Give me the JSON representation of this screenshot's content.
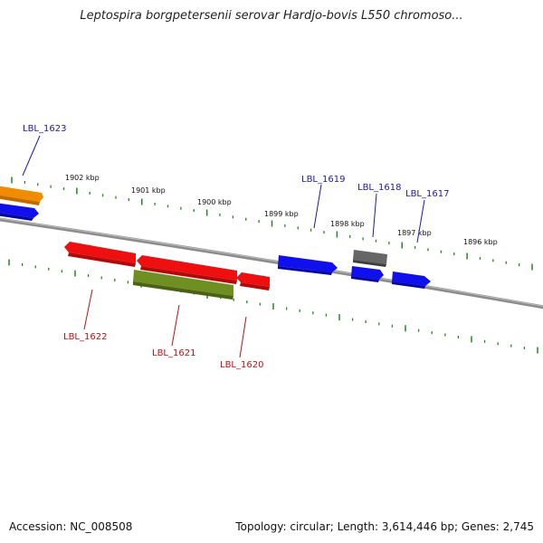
{
  "title": "Leptospira borgpetersenii serovar Hardjo-bovis L550 chromoso...",
  "footer": {
    "accession": "Accession: NC_008508",
    "summary": "Topology: circular; Length: 3,614,446 bp; Genes: 2,745"
  },
  "colors": {
    "forward_gene": "#1010ee",
    "reverse_gene": "#ee1010",
    "green_gene": "#6f8f23",
    "orange_gene": "#f08c00",
    "gray_gene": "#666666",
    "backbone": "#8c8c8c",
    "ticks": "#1e8a1e",
    "forward_label": "#1a1aa8",
    "reverse_label": "#c01010"
  },
  "kbp_labels": [
    "1902 kbp",
    "1901 kbp",
    "1900 kbp",
    "1899 kbp",
    "1898 kbp",
    "1897 kbp",
    "1896 kbp"
  ],
  "genes": [
    {
      "label": "LBL_1623",
      "strand": "forward",
      "color": "orange"
    },
    {
      "label": "LBL_1619",
      "strand": "forward",
      "color": "blue"
    },
    {
      "label": "LBL_1618",
      "strand": "forward",
      "color": "gray"
    },
    {
      "label": "LBL_1617",
      "strand": "forward",
      "color": "blue"
    },
    {
      "label": "LBL_1622",
      "strand": "reverse",
      "color": "red"
    },
    {
      "label": "LBL_1621",
      "strand": "reverse",
      "color": "green"
    },
    {
      "label": "LBL_1620",
      "strand": "reverse",
      "color": "red"
    }
  ]
}
